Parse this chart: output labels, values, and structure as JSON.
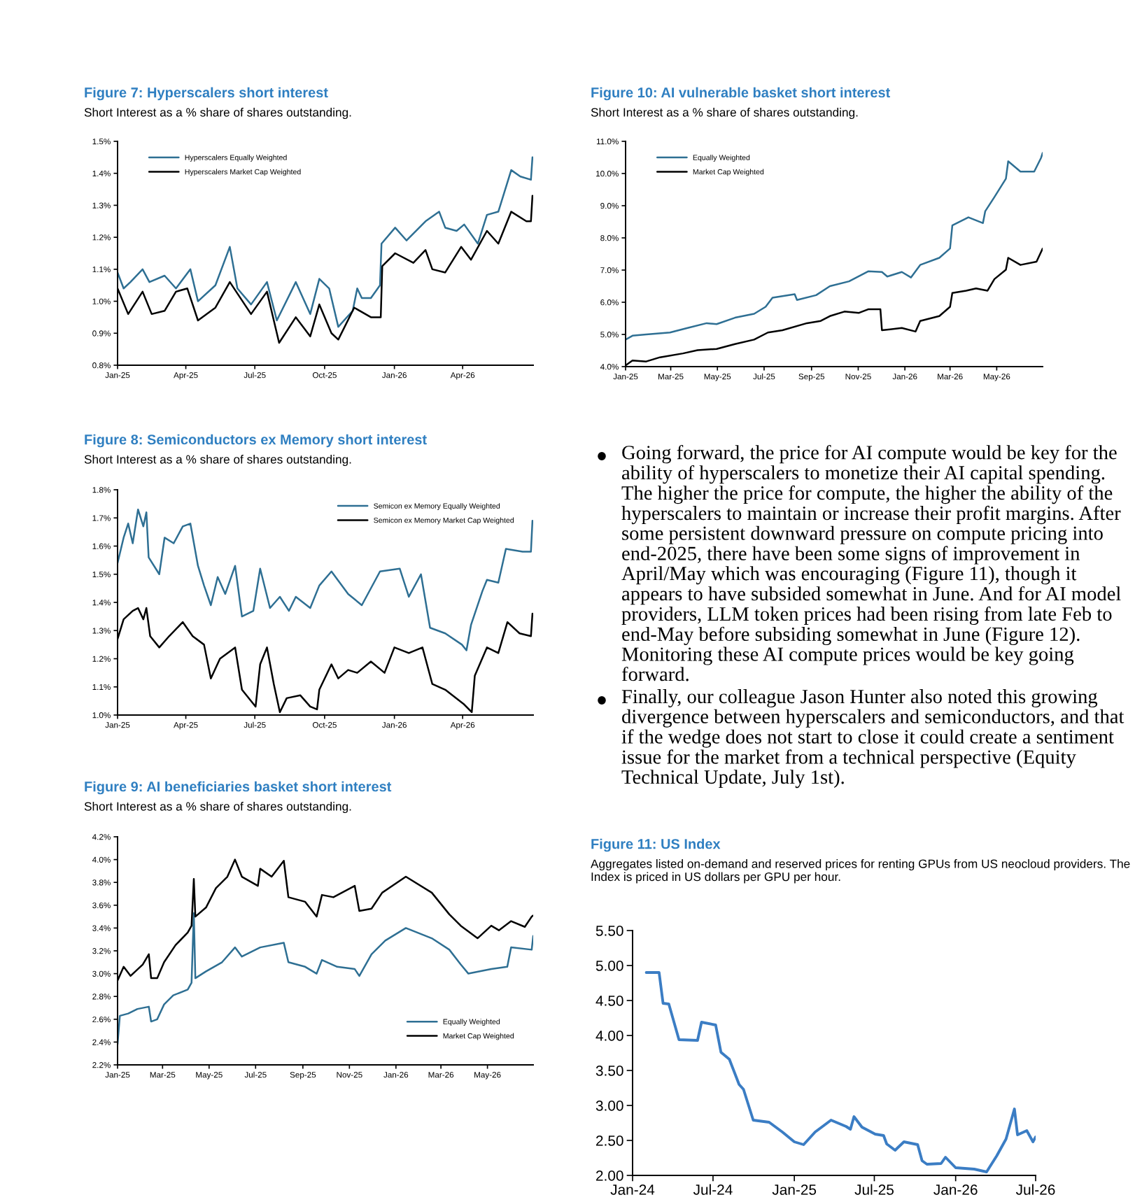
{
  "chart_data": [
    {
      "type": "line",
      "title": "Figure 7: Hyperscalers short interest",
      "subtitle": "Short Interest as a % share of shares outstanding.",
      "legend": "top left",
      "xlim": [
        "2025-01-01",
        "2026-07-03"
      ],
      "xticks": [
        {
          "value": "2025-01-01",
          "label": "Jan-25"
        },
        {
          "value": "2025-04-01",
          "label": "Apr-25"
        },
        {
          "value": "2025-07-01",
          "label": "Jul-25"
        },
        {
          "value": "2025-10-01",
          "label": "Oct-25"
        },
        {
          "value": "2026-01-01",
          "label": "Jan-26"
        },
        {
          "value": "2026-04-01",
          "label": "Apr-26"
        }
      ],
      "ylim": [
        0.8,
        1.5
      ],
      "yticks": [
        {
          "value": 0.8,
          "label": "0.8%"
        },
        {
          "value": 0.9,
          "label": "0.9%"
        },
        {
          "value": 1.0,
          "label": "1.0%"
        },
        {
          "value": 1.1,
          "label": "1.1%"
        },
        {
          "value": 1.2,
          "label": "1.2%"
        },
        {
          "value": 1.3,
          "label": "1.3%"
        },
        {
          "value": 1.4,
          "label": "1.4%"
        },
        {
          "value": 1.5,
          "label": "1.5%"
        }
      ],
      "series": [
        {
          "name": "Hyperscalers Equally Weighted",
          "color": "#2e6f93",
          "x": [
            "2025-01-01",
            "2025-01-09",
            "2025-01-18",
            "2025-02-03",
            "2025-02-12",
            "2025-03-04",
            "2025-03-19",
            "2025-04-07",
            "2025-04-17",
            "2025-05-10",
            "2025-05-29",
            "2025-06-08",
            "2025-06-26",
            "2025-07-17",
            "2025-07-30",
            "2025-08-24",
            "2025-09-12",
            "2025-09-24",
            "2025-10-07",
            "2025-10-19",
            "2025-11-07",
            "2025-11-13",
            "2025-11-19",
            "2025-12-01",
            "2025-12-13",
            "2025-12-15",
            "2026-01-02",
            "2026-01-17",
            "2026-02-11",
            "2026-03-01",
            "2026-03-09",
            "2026-03-24",
            "2026-04-03",
            "2026-04-21",
            "2026-05-03",
            "2026-05-18",
            "2026-06-04",
            "2026-06-16",
            "2026-06-30",
            "2026-07-02"
          ],
          "values": [
            1.09,
            1.04,
            1.06,
            1.1,
            1.06,
            1.08,
            1.04,
            1.1,
            1.0,
            1.05,
            1.17,
            1.04,
            0.99,
            1.06,
            0.94,
            1.06,
            0.96,
            1.07,
            1.04,
            0.92,
            0.97,
            1.04,
            1.01,
            1.01,
            1.05,
            1.18,
            1.23,
            1.19,
            1.25,
            1.28,
            1.23,
            1.22,
            1.24,
            1.18,
            1.27,
            1.28,
            1.41,
            1.39,
            1.38,
            1.45
          ]
        },
        {
          "name": "Hyperscalers Market Cap Weighted",
          "color": "#000000",
          "x": [
            "2025-01-01",
            "2025-01-15",
            "2025-02-03",
            "2025-02-15",
            "2025-03-04",
            "2025-03-19",
            "2025-04-03",
            "2025-04-17",
            "2025-05-10",
            "2025-05-29",
            "2025-06-26",
            "2025-07-17",
            "2025-08-02",
            "2025-08-24",
            "2025-09-12",
            "2025-09-24",
            "2025-10-10",
            "2025-10-19",
            "2025-11-09",
            "2025-12-01",
            "2025-12-14",
            "2025-12-16",
            "2026-01-02",
            "2026-01-26",
            "2026-02-11",
            "2026-02-20",
            "2026-03-09",
            "2026-03-30",
            "2026-04-12",
            "2026-05-03",
            "2026-05-18",
            "2026-06-04",
            "2026-06-24",
            "2026-06-30",
            "2026-07-02"
          ],
          "values": [
            1.04,
            0.96,
            1.03,
            0.96,
            0.97,
            1.03,
            1.04,
            0.94,
            0.98,
            1.06,
            0.96,
            1.03,
            0.87,
            0.95,
            0.89,
            0.99,
            0.9,
            0.88,
            0.98,
            0.95,
            0.95,
            1.11,
            1.15,
            1.12,
            1.16,
            1.1,
            1.09,
            1.17,
            1.13,
            1.22,
            1.18,
            1.28,
            1.25,
            1.25,
            1.33
          ]
        }
      ]
    },
    {
      "type": "line",
      "title": "Figure 8: Semiconductors ex Memory short interest",
      "subtitle": "Short Interest as a % share of shares outstanding.",
      "legend": "top right",
      "xlim": [
        "2025-01-01",
        "2026-07-03"
      ],
      "xticks": [
        {
          "value": "2025-01-01",
          "label": "Jan-25"
        },
        {
          "value": "2025-04-01",
          "label": "Apr-25"
        },
        {
          "value": "2025-07-01",
          "label": "Jul-25"
        },
        {
          "value": "2025-10-01",
          "label": "Oct-25"
        },
        {
          "value": "2026-01-01",
          "label": "Jan-26"
        },
        {
          "value": "2026-04-01",
          "label": "Apr-26"
        }
      ],
      "ylim": [
        1.0,
        1.8
      ],
      "yticks": [
        {
          "value": 1.0,
          "label": "1.0%"
        },
        {
          "value": 1.1,
          "label": "1.1%"
        },
        {
          "value": 1.2,
          "label": "1.2%"
        },
        {
          "value": 1.3,
          "label": "1.3%"
        },
        {
          "value": 1.4,
          "label": "1.4%"
        },
        {
          "value": 1.5,
          "label": "1.5%"
        },
        {
          "value": 1.6,
          "label": "1.6%"
        },
        {
          "value": 1.7,
          "label": "1.7%"
        },
        {
          "value": 1.8,
          "label": "1.8%"
        }
      ],
      "series": [
        {
          "name": "Semicon ex Memory Equally Weighted",
          "color": "#2e6f93",
          "x": [
            "2025-01-01",
            "2025-01-09",
            "2025-01-15",
            "2025-01-21",
            "2025-01-28",
            "2025-02-04",
            "2025-02-08",
            "2025-02-11",
            "2025-02-25",
            "2025-03-04",
            "2025-03-16",
            "2025-03-28",
            "2025-04-07",
            "2025-04-17",
            "2025-04-25",
            "2025-05-04",
            "2025-05-13",
            "2025-05-23",
            "2025-06-05",
            "2025-06-14",
            "2025-06-29",
            "2025-07-08",
            "2025-07-21",
            "2025-08-03",
            "2025-08-15",
            "2025-08-24",
            "2025-09-12",
            "2025-09-24",
            "2025-10-10",
            "2025-11-01",
            "2025-11-19",
            "2025-12-13",
            "2026-01-08",
            "2026-01-20",
            "2026-02-05",
            "2026-02-17",
            "2026-03-09",
            "2026-03-31",
            "2026-04-06",
            "2026-04-12",
            "2026-04-27",
            "2026-05-03",
            "2026-05-18",
            "2026-05-28",
            "2026-06-19",
            "2026-06-30",
            "2026-07-02"
          ],
          "values": [
            1.54,
            1.63,
            1.68,
            1.61,
            1.73,
            1.67,
            1.72,
            1.56,
            1.5,
            1.63,
            1.61,
            1.67,
            1.68,
            1.53,
            1.46,
            1.39,
            1.49,
            1.43,
            1.53,
            1.35,
            1.37,
            1.52,
            1.38,
            1.42,
            1.37,
            1.42,
            1.38,
            1.46,
            1.51,
            1.43,
            1.39,
            1.51,
            1.52,
            1.42,
            1.5,
            1.31,
            1.29,
            1.25,
            1.23,
            1.32,
            1.44,
            1.48,
            1.47,
            1.59,
            1.58,
            1.58,
            1.69
          ]
        },
        {
          "name": "Semicon ex Memory Market Cap Weighted",
          "color": "#000000",
          "x": [
            "2025-01-01",
            "2025-01-09",
            "2025-01-21",
            "2025-01-28",
            "2025-02-04",
            "2025-02-08",
            "2025-02-13",
            "2025-02-25",
            "2025-03-10",
            "2025-03-28",
            "2025-04-10",
            "2025-04-25",
            "2025-05-04",
            "2025-05-16",
            "2025-06-05",
            "2025-06-14",
            "2025-07-02",
            "2025-07-08",
            "2025-07-17",
            "2025-07-26",
            "2025-08-03",
            "2025-08-12",
            "2025-08-30",
            "2025-09-12",
            "2025-09-21",
            "2025-09-24",
            "2025-10-10",
            "2025-10-19",
            "2025-11-01",
            "2025-11-13",
            "2025-12-01",
            "2025-12-19",
            "2026-01-01",
            "2026-01-20",
            "2026-02-07",
            "2026-02-20",
            "2026-03-09",
            "2026-04-02",
            "2026-04-13",
            "2026-04-17",
            "2026-05-03",
            "2026-05-18",
            "2026-05-30",
            "2026-06-15",
            "2026-06-30",
            "2026-07-02"
          ],
          "values": [
            1.27,
            1.34,
            1.37,
            1.38,
            1.34,
            1.38,
            1.28,
            1.24,
            1.28,
            1.33,
            1.28,
            1.25,
            1.13,
            1.2,
            1.24,
            1.09,
            1.03,
            1.18,
            1.24,
            1.11,
            1.01,
            1.06,
            1.07,
            1.03,
            1.02,
            1.09,
            1.18,
            1.13,
            1.16,
            1.15,
            1.19,
            1.15,
            1.24,
            1.22,
            1.24,
            1.11,
            1.09,
            1.04,
            1.01,
            1.14,
            1.24,
            1.22,
            1.33,
            1.29,
            1.28,
            1.36
          ]
        }
      ]
    },
    {
      "type": "line",
      "title": "Figure 9: AI beneficiaries basket short interest",
      "subtitle": "Short Interest as a % share of shares outstanding.",
      "legend": "bottom right",
      "xlim": [
        "2025-01-01",
        "2026-06-30"
      ],
      "xticks": [
        {
          "value": "2025-01-01",
          "label": "Jan-25"
        },
        {
          "value": "2025-03-01",
          "label": "Mar-25"
        },
        {
          "value": "2025-05-01",
          "label": "May-25"
        },
        {
          "value": "2025-07-01",
          "label": "Jul-25"
        },
        {
          "value": "2025-09-01",
          "label": "Sep-25"
        },
        {
          "value": "2025-11-01",
          "label": "Nov-25"
        },
        {
          "value": "2026-01-01",
          "label": "Jan-26"
        },
        {
          "value": "2026-03-01",
          "label": "Mar-26"
        },
        {
          "value": "2026-05-01",
          "label": "May-26"
        }
      ],
      "ylim": [
        2.2,
        4.2
      ],
      "yticks": [
        {
          "value": 2.2,
          "label": "2.2%"
        },
        {
          "value": 2.4,
          "label": "2.4%"
        },
        {
          "value": 2.6,
          "label": "2.6%"
        },
        {
          "value": 2.8,
          "label": "2.8%"
        },
        {
          "value": 3.0,
          "label": "3.0%"
        },
        {
          "value": 3.2,
          "label": "3.2%"
        },
        {
          "value": 3.4,
          "label": "3.4%"
        },
        {
          "value": 3.6,
          "label": "3.6%"
        },
        {
          "value": 3.8,
          "label": "3.8%"
        },
        {
          "value": 4.0,
          "label": "4.0%"
        },
        {
          "value": 4.2,
          "label": "4.2%"
        }
      ],
      "series": [
        {
          "name": "Equally Weighted",
          "color": "#2e6f93",
          "x": [
            "2025-01-01",
            "2025-01-04",
            "2025-01-15",
            "2025-01-27",
            "2025-02-11",
            "2025-02-14",
            "2025-02-22",
            "2025-03-03",
            "2025-03-15",
            "2025-04-03",
            "2025-04-08",
            "2025-04-11",
            "2025-04-13",
            "2025-04-27",
            "2025-05-18",
            "2025-06-04",
            "2025-06-13",
            "2025-07-07",
            "2025-08-07",
            "2025-08-13",
            "2025-09-04",
            "2025-09-19",
            "2025-09-26",
            "2025-10-16",
            "2025-11-08",
            "2025-11-14",
            "2025-11-30",
            "2025-12-18",
            "2026-01-14",
            "2026-02-17",
            "2026-03-12",
            "2026-03-27",
            "2026-04-06",
            "2026-05-06",
            "2026-05-27",
            "2026-06-01",
            "2026-06-28",
            "2026-06-30"
          ],
          "values": [
            2.38,
            2.63,
            2.65,
            2.69,
            2.71,
            2.58,
            2.6,
            2.73,
            2.81,
            2.86,
            2.92,
            3.53,
            2.96,
            3.02,
            3.1,
            3.23,
            3.15,
            3.23,
            3.27,
            3.1,
            3.06,
            3.0,
            3.12,
            3.06,
            3.04,
            2.98,
            3.17,
            3.29,
            3.4,
            3.31,
            3.21,
            3.08,
            3.0,
            3.04,
            3.06,
            3.23,
            3.21,
            3.33
          ]
        },
        {
          "name": "Market Cap Weighted",
          "color": "#000000",
          "x": [
            "2025-01-01",
            "2025-01-09",
            "2025-01-18",
            "2025-02-03",
            "2025-02-11",
            "2025-02-14",
            "2025-02-22",
            "2025-03-03",
            "2025-03-18",
            "2025-04-03",
            "2025-04-08",
            "2025-04-11",
            "2025-04-13",
            "2025-04-27",
            "2025-05-10",
            "2025-05-25",
            "2025-06-04",
            "2025-06-13",
            "2025-07-04",
            "2025-07-07",
            "2025-07-22",
            "2025-08-07",
            "2025-08-13",
            "2025-09-04",
            "2025-09-19",
            "2025-09-26",
            "2025-10-11",
            "2025-11-08",
            "2025-11-14",
            "2025-11-30",
            "2025-12-14",
            "2026-01-14",
            "2026-02-17",
            "2026-03-12",
            "2026-03-27",
            "2026-04-18",
            "2026-05-06",
            "2026-05-16",
            "2026-06-01",
            "2026-06-19",
            "2026-06-28",
            "2026-06-30"
          ],
          "values": [
            2.94,
            3.06,
            2.98,
            3.08,
            3.17,
            2.96,
            2.96,
            3.1,
            3.25,
            3.36,
            3.42,
            3.83,
            3.5,
            3.58,
            3.75,
            3.85,
            4.0,
            3.85,
            3.77,
            3.92,
            3.85,
            3.99,
            3.67,
            3.63,
            3.5,
            3.69,
            3.67,
            3.77,
            3.55,
            3.57,
            3.71,
            3.85,
            3.71,
            3.52,
            3.42,
            3.31,
            3.42,
            3.38,
            3.46,
            3.41,
            3.5,
            3.51
          ]
        }
      ]
    },
    {
      "type": "line",
      "title": "Figure 10: AI vulnerable basket short interest",
      "subtitle": "Short Interest as a % share of shares outstanding.",
      "legend": "top left",
      "xlim": [
        "2025-01-01",
        "2026-06-30"
      ],
      "xticks": [
        {
          "value": "2025-01-01",
          "label": "Jan-25"
        },
        {
          "value": "2025-03-01",
          "label": "Mar-25"
        },
        {
          "value": "2025-05-01",
          "label": "May-25"
        },
        {
          "value": "2025-07-01",
          "label": "Jul-25"
        },
        {
          "value": "2025-09-01",
          "label": "Sep-25"
        },
        {
          "value": "2025-11-01",
          "label": "Nov-25"
        },
        {
          "value": "2026-01-01",
          "label": "Jan-26"
        },
        {
          "value": "2026-03-01",
          "label": "Mar-26"
        },
        {
          "value": "2026-05-01",
          "label": "May-26"
        }
      ],
      "ylim": [
        4.0,
        11.0
      ],
      "yticks": [
        {
          "value": 4.0,
          "label": "4.0%"
        },
        {
          "value": 5.0,
          "label": "5.0%"
        },
        {
          "value": 6.0,
          "label": "6.0%"
        },
        {
          "value": 7.0,
          "label": "7.0%"
        },
        {
          "value": 8.0,
          "label": "8.0%"
        },
        {
          "value": 9.0,
          "label": "9.0%"
        },
        {
          "value": 10.0,
          "label": "10.0%"
        },
        {
          "value": 11.0,
          "label": "11.0%"
        }
      ],
      "series": [
        {
          "name": "Equally Weighted",
          "color": "#2e6f93",
          "x": [
            "2025-01-01",
            "2025-01-10",
            "2025-01-28",
            "2025-02-28",
            "2025-03-23",
            "2025-04-17",
            "2025-04-30",
            "2025-05-24",
            "2025-06-18",
            "2025-07-03",
            "2025-07-12",
            "2025-08-10",
            "2025-08-13",
            "2025-09-07",
            "2025-09-25",
            "2025-10-20",
            "2025-11-14",
            "2025-12-02",
            "2025-12-09",
            "2025-12-28",
            "2026-01-09",
            "2026-01-21",
            "2026-02-15",
            "2026-03-01",
            "2026-03-04",
            "2026-03-25",
            "2026-04-13",
            "2026-04-16",
            "2026-04-28",
            "2026-05-13",
            "2026-05-16",
            "2026-06-01",
            "2026-06-19",
            "2026-06-28",
            "2026-06-30"
          ],
          "values": [
            4.84,
            4.96,
            5.0,
            5.06,
            5.2,
            5.35,
            5.32,
            5.52,
            5.64,
            5.86,
            6.14,
            6.25,
            6.07,
            6.22,
            6.5,
            6.65,
            6.96,
            6.94,
            6.8,
            6.94,
            6.77,
            7.16,
            7.38,
            7.67,
            8.39,
            8.64,
            8.46,
            8.83,
            9.27,
            9.84,
            10.38,
            10.06,
            10.06,
            10.49,
            10.64
          ]
        },
        {
          "name": "Market Cap Weighted",
          "color": "#000000",
          "x": [
            "2025-01-01",
            "2025-01-10",
            "2025-01-28",
            "2025-02-15",
            "2025-03-17",
            "2025-04-05",
            "2025-04-30",
            "2025-05-24",
            "2025-06-18",
            "2025-07-06",
            "2025-07-25",
            "2025-08-26",
            "2025-09-13",
            "2025-09-25",
            "2025-10-14",
            "2025-11-02",
            "2025-11-14",
            "2025-11-30",
            "2025-12-02",
            "2025-12-28",
            "2026-01-15",
            "2026-01-21",
            "2026-02-15",
            "2026-03-01",
            "2026-03-04",
            "2026-03-22",
            "2026-04-04",
            "2026-04-19",
            "2026-04-28",
            "2026-05-13",
            "2026-05-16",
            "2026-06-01",
            "2026-06-22",
            "2026-06-30"
          ],
          "values": [
            4.04,
            4.19,
            4.16,
            4.29,
            4.41,
            4.51,
            4.55,
            4.7,
            4.84,
            5.06,
            5.13,
            5.35,
            5.42,
            5.57,
            5.71,
            5.67,
            5.78,
            5.78,
            5.13,
            5.2,
            5.09,
            5.42,
            5.57,
            5.86,
            6.29,
            6.36,
            6.43,
            6.36,
            6.72,
            7.01,
            7.38,
            7.16,
            7.26,
            7.67
          ]
        }
      ]
    },
    {
      "type": "other",
      "annotations": [
        "Going forward, the price for AI compute would be key for the ability of hyperscalers to monetize their AI capital spending. The higher the price for compute, the higher the ability of the hyperscalers to maintain or increase their profit margins. After some persistent downward pressure on compute pricing into end-2025, there have been some signs of improvement in April/May which was encouraging (Figure 11), though it appears to have subsided somewhat in June. And for AI model providers, LLM token prices had been rising from late Feb to end-May before subsiding somewhat in June (Figure 12). Monitoring these AI compute prices would be key going forward.",
        "Finally, our colleague Jason Hunter also noted this growing divergence between hyperscalers and semiconductors, and that if the wedge does not start to close it could create a sentiment issue for the market from a technical perspective (Equity Technical Update, July 1st)."
      ]
    },
    {
      "type": "line",
      "title": "Figure 11: US Index",
      "subtitle": "Aggregates listed on-demand and reserved prices for renting GPUs from US neocloud providers. The Index is priced in US dollars per GPU per hour.",
      "xlim": [
        "2024-01-01",
        "2026-07-01"
      ],
      "xticks": [
        {
          "value": "2024-01-01",
          "label": "Jan-24"
        },
        {
          "value": "2024-07-01",
          "label": "Jul-24"
        },
        {
          "value": "2025-01-01",
          "label": "Jan-25"
        },
        {
          "value": "2025-07-01",
          "label": "Jul-25"
        },
        {
          "value": "2026-01-01",
          "label": "Jan-26"
        },
        {
          "value": "2026-07-01",
          "label": "Jul-26"
        }
      ],
      "ylim": [
        2.0,
        5.5
      ],
      "yticks": [
        {
          "value": 2.0,
          "label": "2.00"
        },
        {
          "value": 2.5,
          "label": "2.50"
        },
        {
          "value": 3.0,
          "label": "3.00"
        },
        {
          "value": 3.5,
          "label": "3.50"
        },
        {
          "value": 4.0,
          "label": "4.00"
        },
        {
          "value": 4.5,
          "label": "4.50"
        },
        {
          "value": 5.0,
          "label": "5.00"
        },
        {
          "value": 5.5,
          "label": "5.50"
        }
      ],
      "series": [
        {
          "color": "#3b7dc4",
          "x": [
            "2024-02-01",
            "2024-03-01",
            "2024-03-10",
            "2024-03-23",
            "2024-04-15",
            "2024-05-27",
            "2024-06-05",
            "2024-07-07",
            "2024-07-19",
            "2024-08-07",
            "2024-08-29",
            "2024-09-08",
            "2024-09-30",
            "2024-11-05",
            "2024-12-05",
            "2025-01-01",
            "2025-01-22",
            "2025-02-17",
            "2025-03-25",
            "2025-04-28",
            "2025-05-08",
            "2025-05-16",
            "2025-06-03",
            "2025-07-03",
            "2025-07-22",
            "2025-07-29",
            "2025-08-17",
            "2025-09-06",
            "2025-10-07",
            "2025-10-17",
            "2025-10-28",
            "2025-11-29",
            "2025-12-09",
            "2026-01-01",
            "2026-02-12",
            "2026-03-12",
            "2026-04-04",
            "2026-04-25",
            "2026-05-14",
            "2026-05-21",
            "2026-06-11",
            "2026-06-25",
            "2026-07-01"
          ],
          "values": [
            4.9,
            4.9,
            4.46,
            4.45,
            3.94,
            3.93,
            4.19,
            4.15,
            3.76,
            3.66,
            3.3,
            3.23,
            2.79,
            2.76,
            2.62,
            2.48,
            2.44,
            2.62,
            2.79,
            2.7,
            2.66,
            2.84,
            2.69,
            2.59,
            2.57,
            2.45,
            2.36,
            2.48,
            2.44,
            2.21,
            2.16,
            2.17,
            2.26,
            2.11,
            2.09,
            2.05,
            2.28,
            2.52,
            2.95,
            2.58,
            2.64,
            2.48,
            2.55
          ]
        }
      ]
    }
  ]
}
